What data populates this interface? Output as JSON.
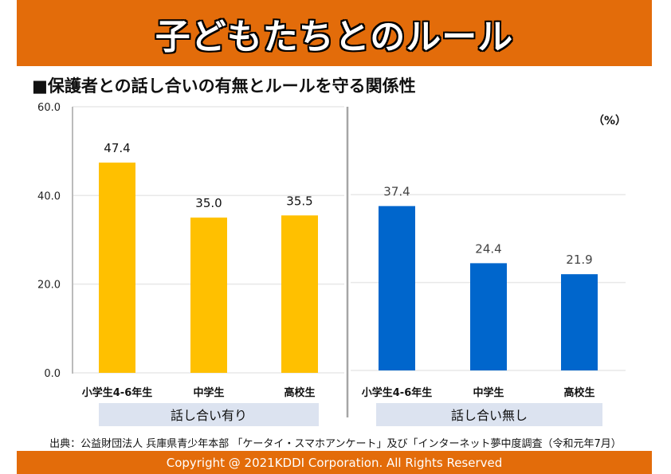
{
  "header": {
    "title": "子どもたちとのルール"
  },
  "subtitle": "■保護者との話し合いの有無とルールを守る関係性",
  "source": "出典：公益財団法人 兵庫県青少年本部 「ケータイ・スマホアンケート」及び「インターネット夢中度調査（令和元年7月）",
  "footer": {
    "copyright": "Copyright @ 2021KDDI Corporation. All Rights Reserved"
  },
  "colors": {
    "header_bg": "#E36C0A",
    "series_with_talk": "#FFC000",
    "series_without_talk": "#0066CC",
    "group_label_bg": "#DCE3F0"
  },
  "chart_data": {
    "type": "bar",
    "title": "保護者との話し合いの有無とルールを守る関係性",
    "unit_label": "（%）",
    "ylabel": "",
    "xlabel": "",
    "ylim": [
      0,
      60
    ],
    "yticks": [
      0,
      20,
      40,
      60
    ],
    "ytick_labels": [
      "0.0",
      "20.0",
      "40.0",
      "60.0"
    ],
    "grid": true,
    "categories": [
      "小学生4-6年生",
      "中学生",
      "高校生"
    ],
    "series": [
      {
        "name": "話し合い有り",
        "color": "#FFC000",
        "values": [
          47.4,
          35.0,
          35.5
        ],
        "labels": [
          "47.4",
          "35.0",
          "35.5"
        ]
      },
      {
        "name": "話し合い無し",
        "color": "#0066CC",
        "values": [
          37.4,
          24.4,
          21.9
        ],
        "labels": [
          "37.4",
          "24.4",
          "21.9"
        ]
      }
    ]
  }
}
